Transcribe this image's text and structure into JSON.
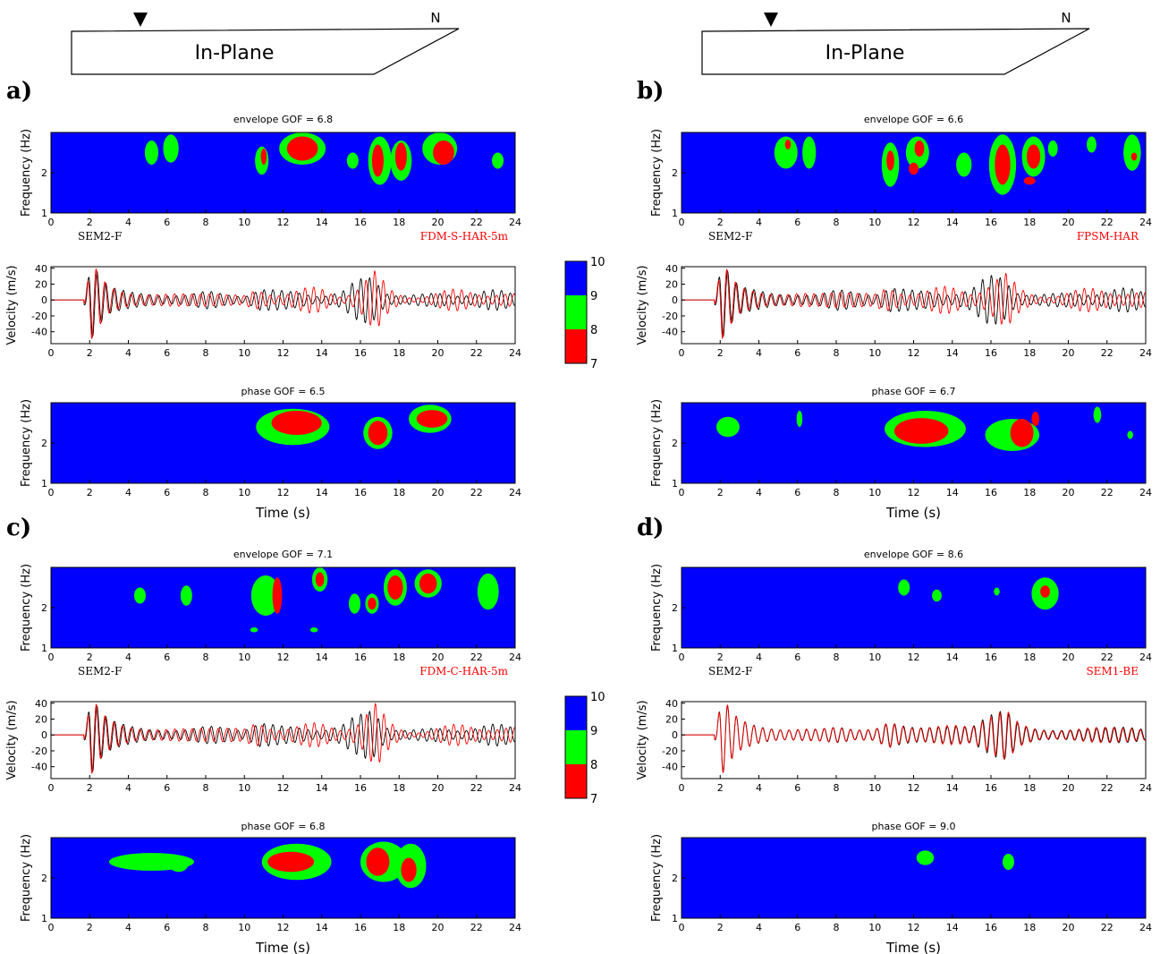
{
  "colors": {
    "level_7": "#ff0000",
    "level_8": "#00ff00",
    "level_9": "#0000ff",
    "trace_reference": "#000000",
    "trace_model": "#ff0000"
  },
  "x_ticks": [
    "0",
    "2",
    "4",
    "6",
    "8",
    "10",
    "12",
    "14",
    "16",
    "18",
    "20",
    "22",
    "24"
  ],
  "freq_ticks": [
    "1",
    "2"
  ],
  "time_label": "Time (s)",
  "freq_label": "Frequency (Hz)",
  "vel_label": "Velocity (m/s)",
  "diagram": {
    "label": "In-Plane",
    "north": "N"
  },
  "colorbar_ticks": [
    "10",
    "9",
    "8",
    "7"
  ],
  "panels": [
    {
      "letter": "a)",
      "env_title": "envelope GOF = 6.8",
      "phase_title": "phase GOF = 6.5",
      "ref_name": "SEM2-F",
      "model_name": "FDM-S-HAR-5m"
    },
    {
      "letter": "b)",
      "env_title": "envelope GOF = 6.6",
      "phase_title": "phase GOF = 6.7",
      "ref_name": "SEM2-F",
      "model_name": "FPSM-HAR"
    },
    {
      "letter": "c)",
      "env_title": "envelope GOF = 7.1",
      "phase_title": "phase GOF = 6.8",
      "ref_name": "SEM2-F",
      "model_name": "FDM-C-HAR-5m"
    },
    {
      "letter": "d)",
      "env_title": "envelope GOF = 8.6",
      "phase_title": "phase GOF = 9.0",
      "ref_name": "SEM2-F",
      "model_name": "SEM1-BE"
    }
  ],
  "chart_data": [
    {
      "type": "heatmap",
      "panel": "a",
      "title": "envelope GOF = 6.8",
      "xlabel": "",
      "ylabel": "Frequency (Hz)",
      "xlim": [
        0,
        24
      ],
      "ylim": [
        1,
        3
      ],
      "levels": [
        7,
        8,
        9,
        10
      ],
      "blobs": [
        [
          5.2,
          2.5,
          0.35,
          0.3,
          8
        ],
        [
          6.2,
          2.6,
          0.4,
          0.35,
          8
        ],
        [
          10.9,
          2.3,
          0.35,
          0.35,
          8
        ],
        [
          11.0,
          2.4,
          0.15,
          0.2,
          7
        ],
        [
          13.0,
          2.6,
          1.2,
          0.4,
          8
        ],
        [
          13.0,
          2.6,
          0.8,
          0.3,
          7
        ],
        [
          17.0,
          2.3,
          0.6,
          0.6,
          8
        ],
        [
          16.9,
          2.3,
          0.3,
          0.4,
          7
        ],
        [
          18.1,
          2.3,
          0.55,
          0.5,
          8
        ],
        [
          18.1,
          2.4,
          0.3,
          0.35,
          7
        ],
        [
          20.1,
          2.6,
          0.9,
          0.4,
          8
        ],
        [
          20.3,
          2.5,
          0.55,
          0.3,
          7
        ],
        [
          15.6,
          2.3,
          0.3,
          0.2,
          8
        ],
        [
          23.1,
          2.3,
          0.3,
          0.2,
          8
        ]
      ]
    },
    {
      "type": "line",
      "panel": "a",
      "xlabel": "",
      "ylabel": "Velocity (m/s)",
      "xlim": [
        0,
        24
      ],
      "ylim": [
        -55,
        42
      ],
      "yticks": [
        40,
        20,
        0,
        -20,
        -40
      ],
      "series": [
        {
          "reference": "SEM2-F"
        },
        {
          "model": "FDM-S-HAR-5m"
        }
      ],
      "envelope": [
        [
          0,
          0
        ],
        [
          1.6,
          0
        ],
        [
          1.8,
          10
        ],
        [
          2.1,
          50
        ],
        [
          2.5,
          35
        ],
        [
          3,
          22
        ],
        [
          4,
          18
        ],
        [
          5,
          16
        ],
        [
          6,
          12
        ],
        [
          7,
          10
        ],
        [
          8,
          10
        ],
        [
          9,
          6
        ],
        [
          10,
          6
        ],
        [
          10.8,
          25
        ],
        [
          12,
          20
        ],
        [
          13,
          18
        ],
        [
          14,
          14
        ],
        [
          15,
          8
        ],
        [
          16,
          18
        ],
        [
          16.8,
          32
        ],
        [
          17.5,
          18
        ],
        [
          18.5,
          12
        ],
        [
          20,
          14
        ],
        [
          22,
          10
        ],
        [
          24,
          8
        ]
      ],
      "ref_variation": [
        [
          0,
          0
        ],
        [
          6,
          0.15
        ],
        [
          10,
          0.3
        ],
        [
          14,
          0.6
        ],
        [
          18,
          0.5
        ],
        [
          24,
          0.45
        ]
      ]
    },
    {
      "type": "heatmap",
      "panel": "a",
      "title": "phase GOF = 6.5",
      "xlabel": "Time (s)",
      "ylabel": "Frequency (Hz)",
      "xlim": [
        0,
        24
      ],
      "ylim": [
        1,
        3
      ],
      "levels": [
        7,
        8,
        9,
        10
      ],
      "blobs": [
        [
          12.5,
          2.4,
          1.9,
          0.45,
          8
        ],
        [
          12.7,
          2.5,
          1.3,
          0.3,
          7
        ],
        [
          16.9,
          2.25,
          0.75,
          0.4,
          8
        ],
        [
          16.9,
          2.25,
          0.5,
          0.3,
          7
        ],
        [
          19.6,
          2.6,
          1.1,
          0.35,
          8
        ],
        [
          19.7,
          2.6,
          0.8,
          0.22,
          7
        ]
      ]
    },
    {
      "type": "heatmap",
      "panel": "b",
      "title": "envelope GOF = 6.6",
      "xlabel": "",
      "ylabel": "Frequency (Hz)",
      "xlim": [
        0,
        24
      ],
      "ylim": [
        1,
        3
      ],
      "levels": [
        7,
        8,
        9,
        10
      ],
      "blobs": [
        [
          5.4,
          2.5,
          0.6,
          0.4,
          8
        ],
        [
          5.5,
          2.7,
          0.15,
          0.12,
          7
        ],
        [
          6.6,
          2.5,
          0.35,
          0.4,
          8
        ],
        [
          10.8,
          2.2,
          0.45,
          0.55,
          8
        ],
        [
          10.8,
          2.3,
          0.2,
          0.25,
          7
        ],
        [
          12.2,
          2.5,
          0.6,
          0.4,
          8
        ],
        [
          12.3,
          2.6,
          0.25,
          0.2,
          7
        ],
        [
          12.0,
          2.1,
          0.25,
          0.15,
          7
        ],
        [
          14.6,
          2.2,
          0.4,
          0.3,
          8
        ],
        [
          16.6,
          2.2,
          0.7,
          0.75,
          8
        ],
        [
          16.6,
          2.2,
          0.4,
          0.5,
          7
        ],
        [
          18.2,
          2.4,
          0.6,
          0.5,
          8
        ],
        [
          18.2,
          2.4,
          0.35,
          0.3,
          7
        ],
        [
          18.0,
          1.8,
          0.3,
          0.1,
          7
        ],
        [
          21.2,
          2.7,
          0.25,
          0.2,
          8
        ],
        [
          23.3,
          2.5,
          0.45,
          0.45,
          8
        ],
        [
          23.4,
          2.4,
          0.15,
          0.1,
          7
        ],
        [
          19.2,
          2.6,
          0.25,
          0.2,
          8
        ]
      ]
    },
    {
      "type": "line",
      "panel": "b",
      "xlabel": "",
      "ylabel": "Velocity (m/s)",
      "xlim": [
        0,
        24
      ],
      "ylim": [
        -55,
        42
      ],
      "yticks": [
        40,
        20,
        0,
        -20,
        -40
      ],
      "series": [
        {
          "reference": "SEM2-F"
        },
        {
          "model": "FPSM-HAR"
        }
      ],
      "envelope": [
        [
          0,
          0
        ],
        [
          1.6,
          0
        ],
        [
          1.8,
          10
        ],
        [
          2.1,
          50
        ],
        [
          2.5,
          35
        ],
        [
          3,
          22
        ],
        [
          4,
          20
        ],
        [
          5,
          16
        ],
        [
          6,
          14
        ],
        [
          7,
          10
        ],
        [
          8,
          12
        ],
        [
          9,
          8
        ],
        [
          10,
          8
        ],
        [
          10.8,
          28
        ],
        [
          12,
          22
        ],
        [
          13,
          20
        ],
        [
          14,
          16
        ],
        [
          15,
          12
        ],
        [
          16,
          22
        ],
        [
          16.8,
          30
        ],
        [
          17.5,
          18
        ],
        [
          18.5,
          14
        ],
        [
          20,
          15
        ],
        [
          22,
          12
        ],
        [
          24,
          10
        ]
      ],
      "ref_variation": [
        [
          0,
          0
        ],
        [
          6,
          0.1
        ],
        [
          10,
          0.25
        ],
        [
          14,
          0.5
        ],
        [
          18,
          0.45
        ],
        [
          24,
          0.4
        ]
      ]
    },
    {
      "type": "heatmap",
      "panel": "b",
      "title": "phase GOF = 6.7",
      "xlabel": "Time (s)",
      "ylabel": "Frequency (Hz)",
      "xlim": [
        0,
        24
      ],
      "ylim": [
        1,
        3
      ],
      "levels": [
        7,
        8,
        9,
        10
      ],
      "blobs": [
        [
          2.4,
          2.4,
          0.6,
          0.25,
          8
        ],
        [
          6.1,
          2.6,
          0.15,
          0.2,
          8
        ],
        [
          12.6,
          2.35,
          2.1,
          0.45,
          8
        ],
        [
          12.4,
          2.3,
          1.4,
          0.32,
          7
        ],
        [
          17.1,
          2.2,
          1.4,
          0.4,
          8
        ],
        [
          17.6,
          2.25,
          0.6,
          0.35,
          7
        ],
        [
          18.3,
          2.6,
          0.2,
          0.18,
          7
        ],
        [
          21.5,
          2.7,
          0.2,
          0.2,
          8
        ],
        [
          23.2,
          2.2,
          0.15,
          0.1,
          8
        ]
      ]
    },
    {
      "type": "heatmap",
      "panel": "c",
      "title": "envelope GOF = 7.1",
      "xlabel": "",
      "ylabel": "Frequency (Hz)",
      "xlim": [
        0,
        24
      ],
      "ylim": [
        1,
        3
      ],
      "levels": [
        7,
        8,
        9,
        10
      ],
      "blobs": [
        [
          4.6,
          2.3,
          0.3,
          0.2,
          8
        ],
        [
          7.0,
          2.3,
          0.3,
          0.25,
          8
        ],
        [
          11.1,
          2.3,
          0.75,
          0.5,
          8
        ],
        [
          11.7,
          2.3,
          0.25,
          0.45,
          7
        ],
        [
          13.9,
          2.7,
          0.4,
          0.3,
          8
        ],
        [
          13.9,
          2.7,
          0.22,
          0.18,
          7
        ],
        [
          15.7,
          2.1,
          0.3,
          0.25,
          8
        ],
        [
          16.6,
          2.1,
          0.35,
          0.25,
          8
        ],
        [
          16.6,
          2.1,
          0.22,
          0.15,
          7
        ],
        [
          17.8,
          2.5,
          0.6,
          0.45,
          8
        ],
        [
          17.8,
          2.5,
          0.4,
          0.3,
          7
        ],
        [
          19.5,
          2.6,
          0.7,
          0.35,
          8
        ],
        [
          19.5,
          2.6,
          0.45,
          0.25,
          7
        ],
        [
          22.6,
          2.4,
          0.55,
          0.45,
          8
        ],
        [
          10.5,
          1.45,
          0.2,
          0.06,
          8
        ],
        [
          13.6,
          1.45,
          0.2,
          0.06,
          8
        ]
      ]
    },
    {
      "type": "line",
      "panel": "c",
      "xlabel": "",
      "ylabel": "Velocity (m/s)",
      "xlim": [
        0,
        24
      ],
      "ylim": [
        -55,
        42
      ],
      "yticks": [
        40,
        20,
        0,
        -20,
        -40
      ],
      "series": [
        {
          "reference": "SEM2-F"
        },
        {
          "model": "FDM-C-HAR-5m"
        }
      ],
      "envelope": [
        [
          0,
          0
        ],
        [
          1.6,
          0
        ],
        [
          1.8,
          10
        ],
        [
          2.1,
          50
        ],
        [
          2.5,
          35
        ],
        [
          3,
          25
        ],
        [
          4,
          20
        ],
        [
          5,
          16
        ],
        [
          6,
          12
        ],
        [
          7,
          10
        ],
        [
          8,
          10
        ],
        [
          9,
          8
        ],
        [
          10,
          8
        ],
        [
          10.8,
          28
        ],
        [
          12,
          20
        ],
        [
          13,
          18
        ],
        [
          14,
          14
        ],
        [
          15,
          10
        ],
        [
          16,
          18
        ],
        [
          16.8,
          35
        ],
        [
          17.5,
          20
        ],
        [
          18.5,
          12
        ],
        [
          20,
          14
        ],
        [
          22,
          10
        ],
        [
          24,
          10
        ]
      ],
      "ref_variation": [
        [
          0,
          0
        ],
        [
          6,
          0.1
        ],
        [
          10,
          0.25
        ],
        [
          14,
          0.5
        ],
        [
          18,
          0.5
        ],
        [
          24,
          0.4
        ]
      ]
    },
    {
      "type": "heatmap",
      "panel": "c",
      "title": "phase GOF = 6.8",
      "xlabel": "Time (s)",
      "ylabel": "Frequency (Hz)",
      "xlim": [
        0,
        24
      ],
      "ylim": [
        1,
        3
      ],
      "levels": [
        7,
        8,
        9,
        10
      ],
      "blobs": [
        [
          5.2,
          2.4,
          2.2,
          0.22,
          8
        ],
        [
          6.6,
          2.35,
          0.5,
          0.2,
          8
        ],
        [
          12.7,
          2.4,
          1.8,
          0.45,
          8
        ],
        [
          12.4,
          2.4,
          1.2,
          0.25,
          7
        ],
        [
          17.2,
          2.4,
          1.2,
          0.5,
          8
        ],
        [
          16.9,
          2.4,
          0.6,
          0.35,
          7
        ],
        [
          18.6,
          2.3,
          0.8,
          0.55,
          8
        ],
        [
          18.5,
          2.2,
          0.4,
          0.3,
          7
        ]
      ]
    },
    {
      "type": "heatmap",
      "panel": "d",
      "title": "envelope GOF = 8.6",
      "xlabel": "",
      "ylabel": "Frequency (Hz)",
      "xlim": [
        0,
        24
      ],
      "ylim": [
        1,
        3
      ],
      "levels": [
        7,
        8,
        9,
        10
      ],
      "blobs": [
        [
          11.5,
          2.5,
          0.3,
          0.2,
          8
        ],
        [
          13.2,
          2.3,
          0.25,
          0.15,
          8
        ],
        [
          16.3,
          2.4,
          0.15,
          0.1,
          8
        ],
        [
          18.8,
          2.35,
          0.7,
          0.4,
          8
        ],
        [
          18.8,
          2.4,
          0.25,
          0.15,
          7
        ]
      ]
    },
    {
      "type": "line",
      "panel": "d",
      "xlabel": "",
      "ylabel": "Velocity (m/s)",
      "xlim": [
        0,
        24
      ],
      "ylim": [
        -55,
        42
      ],
      "yticks": [
        40,
        20,
        0,
        -20,
        -40
      ],
      "series": [
        {
          "reference": "SEM2-F"
        },
        {
          "model": "SEM1-BE"
        }
      ],
      "envelope": [
        [
          0,
          0
        ],
        [
          1.6,
          0
        ],
        [
          1.8,
          10
        ],
        [
          2.1,
          50
        ],
        [
          2.5,
          35
        ],
        [
          3,
          24
        ],
        [
          4,
          18
        ],
        [
          5,
          16
        ],
        [
          6,
          14
        ],
        [
          7,
          10
        ],
        [
          8,
          10
        ],
        [
          9,
          6
        ],
        [
          10,
          8
        ],
        [
          10.8,
          26
        ],
        [
          12,
          22
        ],
        [
          13,
          20
        ],
        [
          14,
          16
        ],
        [
          15,
          10
        ],
        [
          16,
          24
        ],
        [
          16.8,
          36
        ],
        [
          17.5,
          20
        ],
        [
          18.5,
          14
        ],
        [
          20,
          12
        ],
        [
          22,
          10
        ],
        [
          24,
          8
        ]
      ],
      "ref_variation": [
        [
          0,
          0
        ],
        [
          6,
          0.03
        ],
        [
          14,
          0.06
        ],
        [
          24,
          0.08
        ]
      ]
    },
    {
      "type": "heatmap",
      "panel": "d",
      "title": "phase GOF = 9.0",
      "xlabel": "Time (s)",
      "ylabel": "Frequency (Hz)",
      "xlim": [
        0,
        24
      ],
      "ylim": [
        1,
        3
      ],
      "levels": [
        7,
        8,
        9,
        10
      ],
      "blobs": [
        [
          12.6,
          2.5,
          0.45,
          0.18,
          8
        ],
        [
          16.9,
          2.4,
          0.3,
          0.2,
          8
        ]
      ]
    }
  ]
}
